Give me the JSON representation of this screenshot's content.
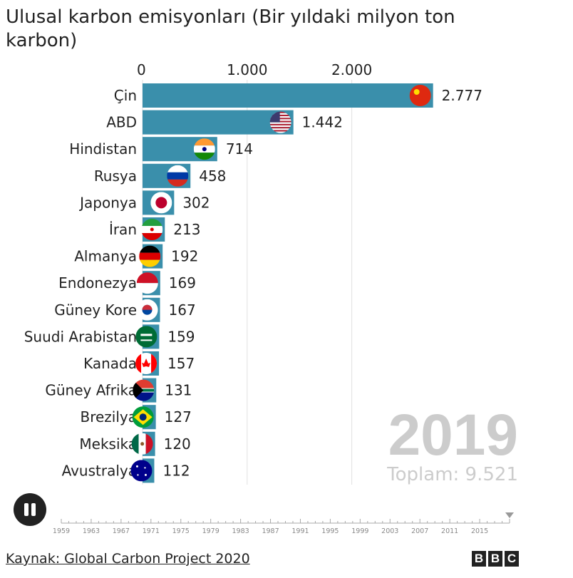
{
  "title": "Ulusal karbon emisyonları (Bir yıldaki milyon ton karbon)",
  "source": "Kaynak: Global Carbon Project 2020",
  "brand": [
    "B",
    "B",
    "C"
  ],
  "controls": {
    "play_pause_icon": "pause-icon",
    "current_year": "2019"
  },
  "colors": {
    "bar": "#3a8fab",
    "year": "#cccccc",
    "grid": "#e0e0e0"
  },
  "chart_data": {
    "type": "bar",
    "orientation": "horizontal",
    "title": "Ulusal karbon emisyonları (Bir yıldaki milyon ton karbon)",
    "xlim": [
      0,
      2777
    ],
    "x_ticks": [
      0,
      1000,
      2000
    ],
    "x_tick_labels": [
      "0",
      "1.000",
      "2.000"
    ],
    "categories": [
      "Çin",
      "ABD",
      "Hindistan",
      "Rusya",
      "Japonya",
      "İran",
      "Almanya",
      "Endonezya",
      "Güney Kore",
      "Suudi Arabistan",
      "Kanada",
      "Güney Afrika",
      "Brezilya",
      "Meksika",
      "Avustralya"
    ],
    "values": [
      2777,
      1442,
      714,
      458,
      302,
      213,
      192,
      169,
      167,
      159,
      157,
      131,
      127,
      120,
      112
    ],
    "value_labels": [
      "2.777",
      "1.442",
      "714",
      "458",
      "302",
      "213",
      "192",
      "169",
      "167",
      "159",
      "157",
      "131",
      "127",
      "120",
      "112"
    ],
    "flags": [
      "china-flag",
      "usa-flag",
      "india-flag",
      "russia-flag",
      "japan-flag",
      "iran-flag",
      "germany-flag",
      "indonesia-flag",
      "south-korea-flag",
      "saudi-arabia-flag",
      "canada-flag",
      "south-africa-flag",
      "brazil-flag",
      "mexico-flag",
      "australia-flag"
    ],
    "year": "2019",
    "total_label": "Toplam: 9.521",
    "timeline": {
      "start": 1959,
      "end": 2019,
      "current": 2019,
      "tick_labels": [
        "1959",
        "1963",
        "1967",
        "1971",
        "1975",
        "1979",
        "1983",
        "1987",
        "1991",
        "1995",
        "1999",
        "2003",
        "2007",
        "2011",
        "2015"
      ]
    }
  }
}
